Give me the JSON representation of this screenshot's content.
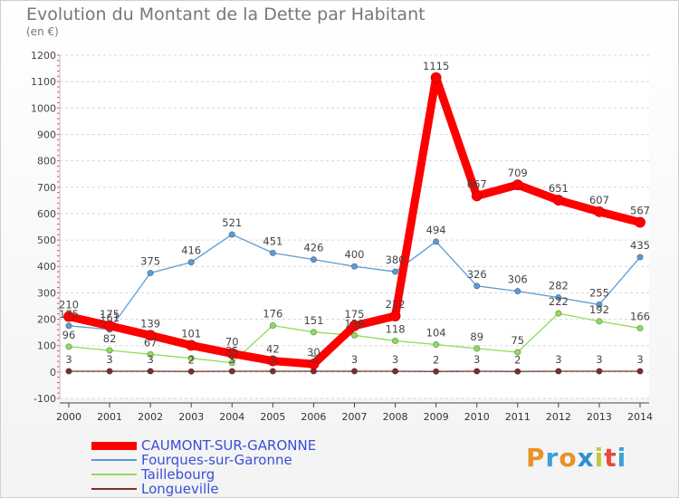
{
  "title": "Evolution du Montant de la Dette par Habitant",
  "unit": "(en €)",
  "logo": {
    "text": "Proxiti",
    "colors": [
      "#e8922a",
      "#3aa0d8",
      "#e8922a",
      "#2f8fd0",
      "#c3c93a",
      "#e84a3a",
      "#3aa0d8"
    ]
  },
  "chart_data": {
    "type": "line",
    "x": [
      "2000",
      "2001",
      "2002",
      "2003",
      "2004",
      "2005",
      "2006",
      "2007",
      "2008",
      "2009",
      "2010",
      "2011",
      "2012",
      "2013",
      "2014"
    ],
    "ylim": [
      -100,
      1200
    ],
    "yticks": [
      "-100",
      "0",
      "100",
      "200",
      "300",
      "400",
      "500",
      "600",
      "700",
      "800",
      "900",
      "1000",
      "1100",
      "1200"
    ],
    "grid": true,
    "legend_position": "bottom-left",
    "series": [
      {
        "name": "CAUMONT-SUR-GARONNE",
        "color": "#ff0000",
        "values": [
          210,
          175,
          139,
          101,
          70,
          42,
          30,
          175,
          212,
          1115,
          667,
          709,
          651,
          607,
          567
        ],
        "labels": [
          "210",
          "175",
          "139",
          "101",
          "70",
          "42",
          "30",
          "175",
          "212",
          "1115",
          "667",
          "709",
          "651",
          "607",
          "567"
        ]
      },
      {
        "name": "Fourques-sur-Garonne",
        "color": "#5b9bd5",
        "values": [
          175,
          161,
          375,
          416,
          521,
          451,
          426,
          400,
          380,
          494,
          326,
          306,
          282,
          255,
          435
        ],
        "labels": [
          "175",
          "161",
          "375",
          "416",
          "521",
          "451",
          "426",
          "400",
          "380",
          "494",
          "326",
          "306",
          "282",
          "255",
          "435"
        ]
      },
      {
        "name": "Taillebourg",
        "color": "#8fdc5a",
        "values": [
          96,
          82,
          67,
          52,
          35,
          176,
          151,
          139,
          118,
          104,
          89,
          75,
          222,
          192,
          166
        ],
        "labels": [
          "96",
          "82",
          "67",
          "",
          "35",
          "176",
          "151",
          "139",
          "118",
          "104",
          "89",
          "75",
          "222",
          "192",
          "166"
        ]
      },
      {
        "name": "Longueville",
        "color": "#7a2e2e",
        "values": [
          3,
          3,
          3,
          2,
          3,
          3,
          3,
          3,
          3,
          2,
          3,
          2,
          3,
          3,
          3
        ],
        "labels": [
          "3",
          "3",
          "3",
          "2",
          "3",
          "3",
          "3",
          "3",
          "3",
          "2",
          "3",
          "2",
          "3",
          "3",
          "3"
        ]
      }
    ]
  }
}
